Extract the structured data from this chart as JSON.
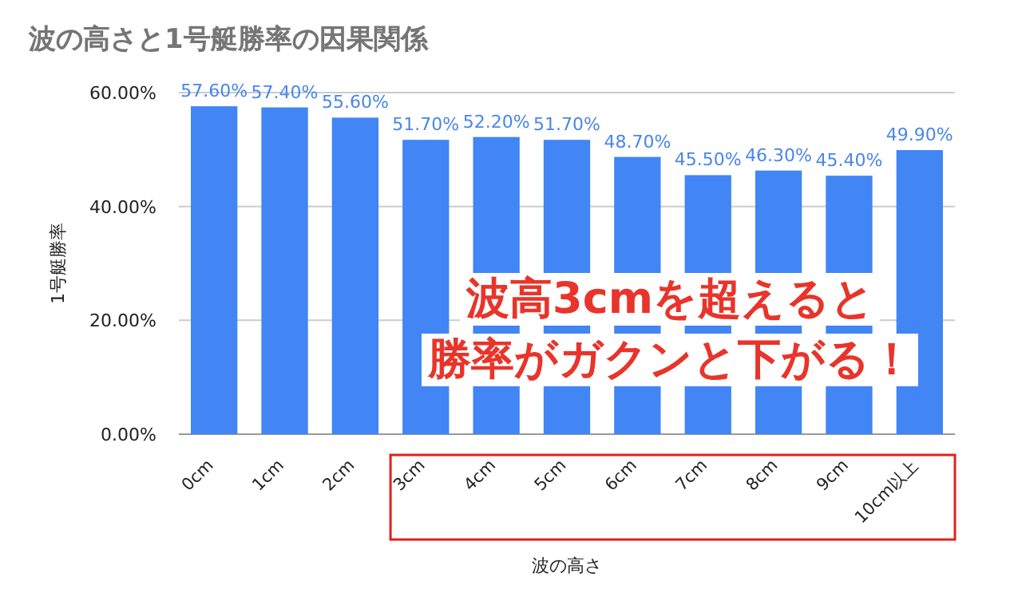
{
  "chart_data": {
    "type": "bar",
    "title": "波の高さと1号艇勝率の因果関係",
    "xlabel": "波の高さ",
    "ylabel": "1号艇勝率",
    "categories": [
      "0cm",
      "1cm",
      "2cm",
      "3cm",
      "4cm",
      "5cm",
      "6cm",
      "7cm",
      "8cm",
      "9cm",
      "10cm以上"
    ],
    "values": [
      57.6,
      57.4,
      55.6,
      51.7,
      52.2,
      51.7,
      48.7,
      45.5,
      46.3,
      45.4,
      49.9
    ],
    "value_labels": [
      "57.60%",
      "57.40%",
      "55.60%",
      "51.70%",
      "52.20%",
      "51.70%",
      "48.70%",
      "45.50%",
      "46.30%",
      "45.40%",
      "49.90%"
    ],
    "color": "#4285f4",
    "ylim": [
      0,
      60
    ],
    "yticks": [
      {
        "value": 0,
        "label": "0.00%"
      },
      {
        "value": 20,
        "label": "20.00%"
      },
      {
        "value": 40,
        "label": "40.00%"
      },
      {
        "value": 60,
        "label": "60.00%"
      }
    ],
    "grid": "y",
    "annotations": [
      "波高3cmを超えると",
      "勝率がガクンと下がる！"
    ]
  }
}
